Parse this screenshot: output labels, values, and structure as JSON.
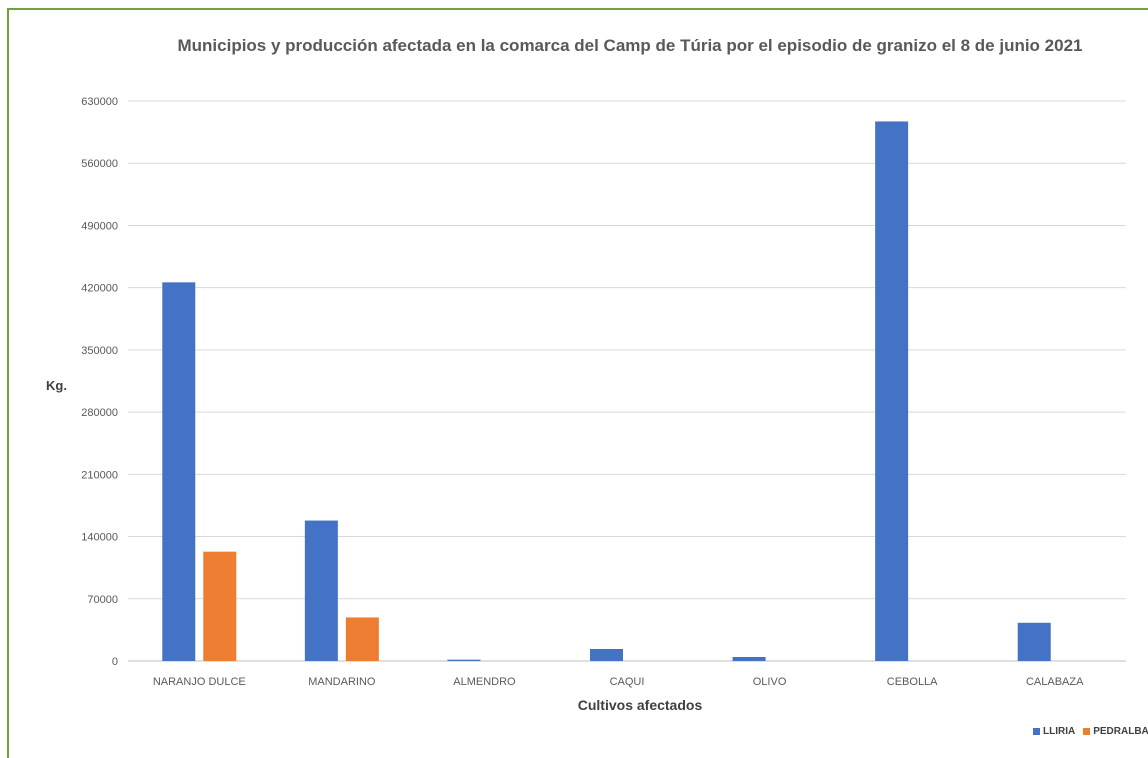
{
  "chart_data": {
    "type": "bar",
    "title": "Municipios y producción afectada en la comarca del Camp de Túria por el episodio de  granizo el 8 de junio 2021",
    "xlabel": "Cultivos afectados",
    "ylabel": "Kg.",
    "categories": [
      "NARANJO DULCE",
      "MANDARINO",
      "ALMENDRO",
      "CAQUI",
      "OLIVO",
      "CEBOLLA",
      "CALABAZA"
    ],
    "series": [
      {
        "name": "LLIRIA",
        "color": "#4472c4",
        "values": [
          426000,
          158000,
          1500,
          13500,
          4500,
          607000,
          43000
        ]
      },
      {
        "name": "PEDRALBA",
        "color": "#ed7d31",
        "values": [
          123000,
          49000,
          0,
          0,
          0,
          0,
          0
        ]
      }
    ],
    "ylim": [
      0,
      630000
    ],
    "yticks": [
      0,
      70000,
      140000,
      210000,
      280000,
      350000,
      420000,
      490000,
      560000,
      630000
    ],
    "grid": true,
    "legend_position": "bottom-right"
  }
}
